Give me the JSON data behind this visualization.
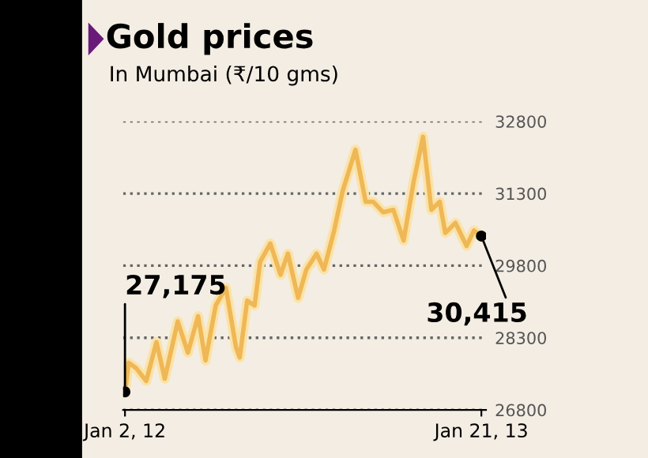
{
  "chart_data": {
    "type": "line",
    "title": "Gold prices",
    "subtitle": "In Mumbai (₹/10 gms)",
    "x": [
      "2012-01-02",
      "2012-01-06",
      "2012-01-14",
      "2012-01-25",
      "2012-02-05",
      "2012-02-14",
      "2012-02-28",
      "2012-03-10",
      "2012-03-21",
      "2012-03-29",
      "2012-04-09",
      "2012-04-20",
      "2012-05-01",
      "2012-05-05",
      "2012-05-13",
      "2012-05-21",
      "2012-05-27",
      "2012-06-07",
      "2012-06-18",
      "2012-06-26",
      "2012-07-07",
      "2012-07-16",
      "2012-07-27",
      "2012-08-04",
      "2012-08-15",
      "2012-08-24",
      "2012-09-07",
      "2012-09-18",
      "2012-09-26",
      "2012-10-07",
      "2012-10-18",
      "2012-10-29",
      "2012-11-09",
      "2012-11-19",
      "2012-11-28",
      "2012-12-07",
      "2012-12-13",
      "2012-12-24",
      "2013-01-05",
      "2013-01-13",
      "2013-01-21"
    ],
    "series": [
      {
        "color": "#efb755",
        "values": [
          27175,
          27780,
          27670,
          27400,
          28210,
          27450,
          28640,
          27990,
          28750,
          27830,
          28970,
          29340,
          28100,
          27890,
          29070,
          28970,
          29880,
          30260,
          29610,
          30050,
          29130,
          29720,
          30050,
          29720,
          30530,
          31340,
          32210,
          31130,
          31130,
          30910,
          30960,
          30320,
          31560,
          32480,
          30960,
          31130,
          30480,
          30690,
          30210,
          30530,
          30415
        ]
      }
    ],
    "annotations": [
      {
        "text": "27,175",
        "x": "2012-01-02",
        "y": 27175
      },
      {
        "text": "30,415",
        "x": "2013-01-21",
        "y": 30415
      }
    ],
    "xlim": [
      "2011-12-31",
      "2013-01-26"
    ],
    "xticks": [
      {
        "value": "2012-01-02",
        "label": "Jan 2, 12"
      },
      {
        "value": "2013-01-21",
        "label": "Jan 21, 13"
      }
    ],
    "ylim": [
      26800,
      32800
    ],
    "yticks": [
      26800,
      28300,
      29800,
      31300,
      32800
    ],
    "grid": "y",
    "marker": "none",
    "line_style": "solid"
  }
}
